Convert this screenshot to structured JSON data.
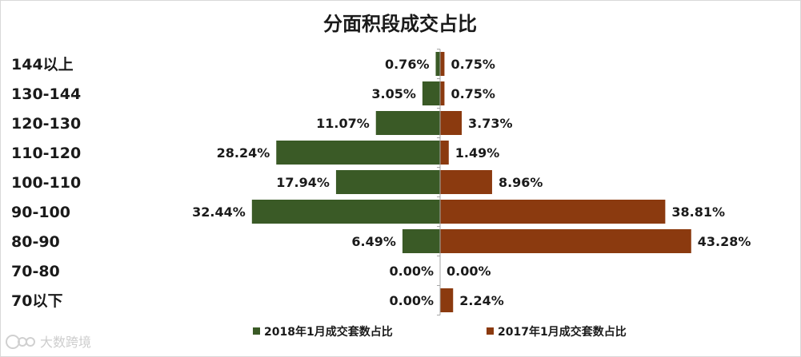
{
  "chart_data": {
    "type": "bar",
    "orientation": "horizontal-diverging",
    "title": "分面积段成交占比",
    "categories": [
      "144以上",
      "130-144",
      "120-130",
      "110-120",
      "100-110",
      "90-100",
      "80-90",
      "70-80",
      "70以下"
    ],
    "series": [
      {
        "name": "2018年1月成交套数占比",
        "color": "#3a5a26",
        "side": "left",
        "values": [
          0.76,
          3.05,
          11.07,
          28.24,
          17.94,
          32.44,
          6.49,
          0.0,
          0.0
        ],
        "labels": [
          "0.76%",
          "3.05%",
          "11.07%",
          "28.24%",
          "17.94%",
          "32.44%",
          "6.49%",
          "0.00%",
          "0.00%"
        ]
      },
      {
        "name": "2017年1月成交套数占比",
        "color": "#8b3a0f",
        "side": "right",
        "values": [
          0.75,
          0.75,
          3.73,
          1.49,
          8.96,
          38.81,
          43.28,
          0.0,
          2.24
        ],
        "labels": [
          "0.75%",
          "0.75%",
          "3.73%",
          "1.49%",
          "8.96%",
          "38.81%",
          "43.28%",
          "0.00%",
          "2.24%"
        ]
      }
    ],
    "xlabel": "",
    "ylabel": "",
    "legend_position": "bottom"
  },
  "watermark": {
    "text": "大数跨境",
    "icon": "logo-icon"
  }
}
